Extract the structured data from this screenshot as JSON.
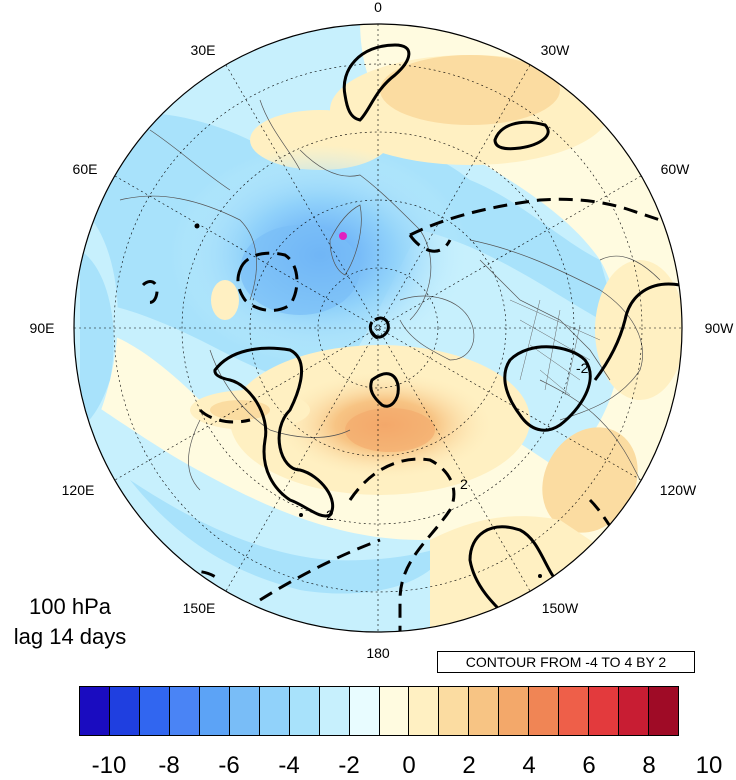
{
  "map": {
    "longitude_labels": [
      "0",
      "30W",
      "60W",
      "90W",
      "120W",
      "150W",
      "180",
      "150E",
      "120E",
      "90E",
      "60E",
      "30E"
    ],
    "level_text": "100 hPa",
    "lag_text": "lag 14 days",
    "contour_info": "CONTOUR FROM -4 TO 4 BY 2",
    "contour_labels": [
      "2",
      "2",
      "-2"
    ]
  },
  "colorbar": {
    "colors": [
      "#1a0cc0",
      "#1f3fe0",
      "#3166f0",
      "#4a84f5",
      "#5ca3f6",
      "#79bdf7",
      "#91d2fa",
      "#a8e2fb",
      "#c7f0fd",
      "#e8fcff",
      "#fffbe0",
      "#fff0c2",
      "#fbdca1",
      "#f7c484",
      "#f3a86a",
      "#f08555",
      "#ee5f49",
      "#e33a3d",
      "#c81d33",
      "#9f0b26"
    ],
    "labels": [
      "-10",
      "-8",
      "-6",
      "-4",
      "-2",
      "0",
      "2",
      "4",
      "6",
      "8",
      "10"
    ]
  }
}
